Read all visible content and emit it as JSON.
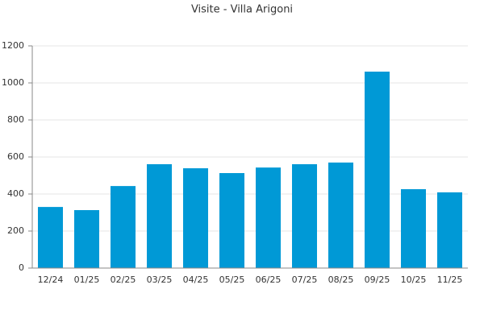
{
  "chart_data": {
    "type": "bar",
    "title": "Visite - Villa Arigoni",
    "categories": [
      "12/24",
      "01/25",
      "02/25",
      "03/25",
      "04/25",
      "05/25",
      "06/25",
      "07/25",
      "08/25",
      "09/25",
      "10/25",
      "11/25"
    ],
    "values": [
      330,
      313,
      443,
      561,
      539,
      513,
      543,
      561,
      570,
      1061,
      426,
      409
    ],
    "color": "#0099d6",
    "ylim": [
      0,
      1200
    ],
    "yticks": [
      0,
      200,
      400,
      600,
      800,
      1000,
      1200
    ],
    "grid": true
  }
}
